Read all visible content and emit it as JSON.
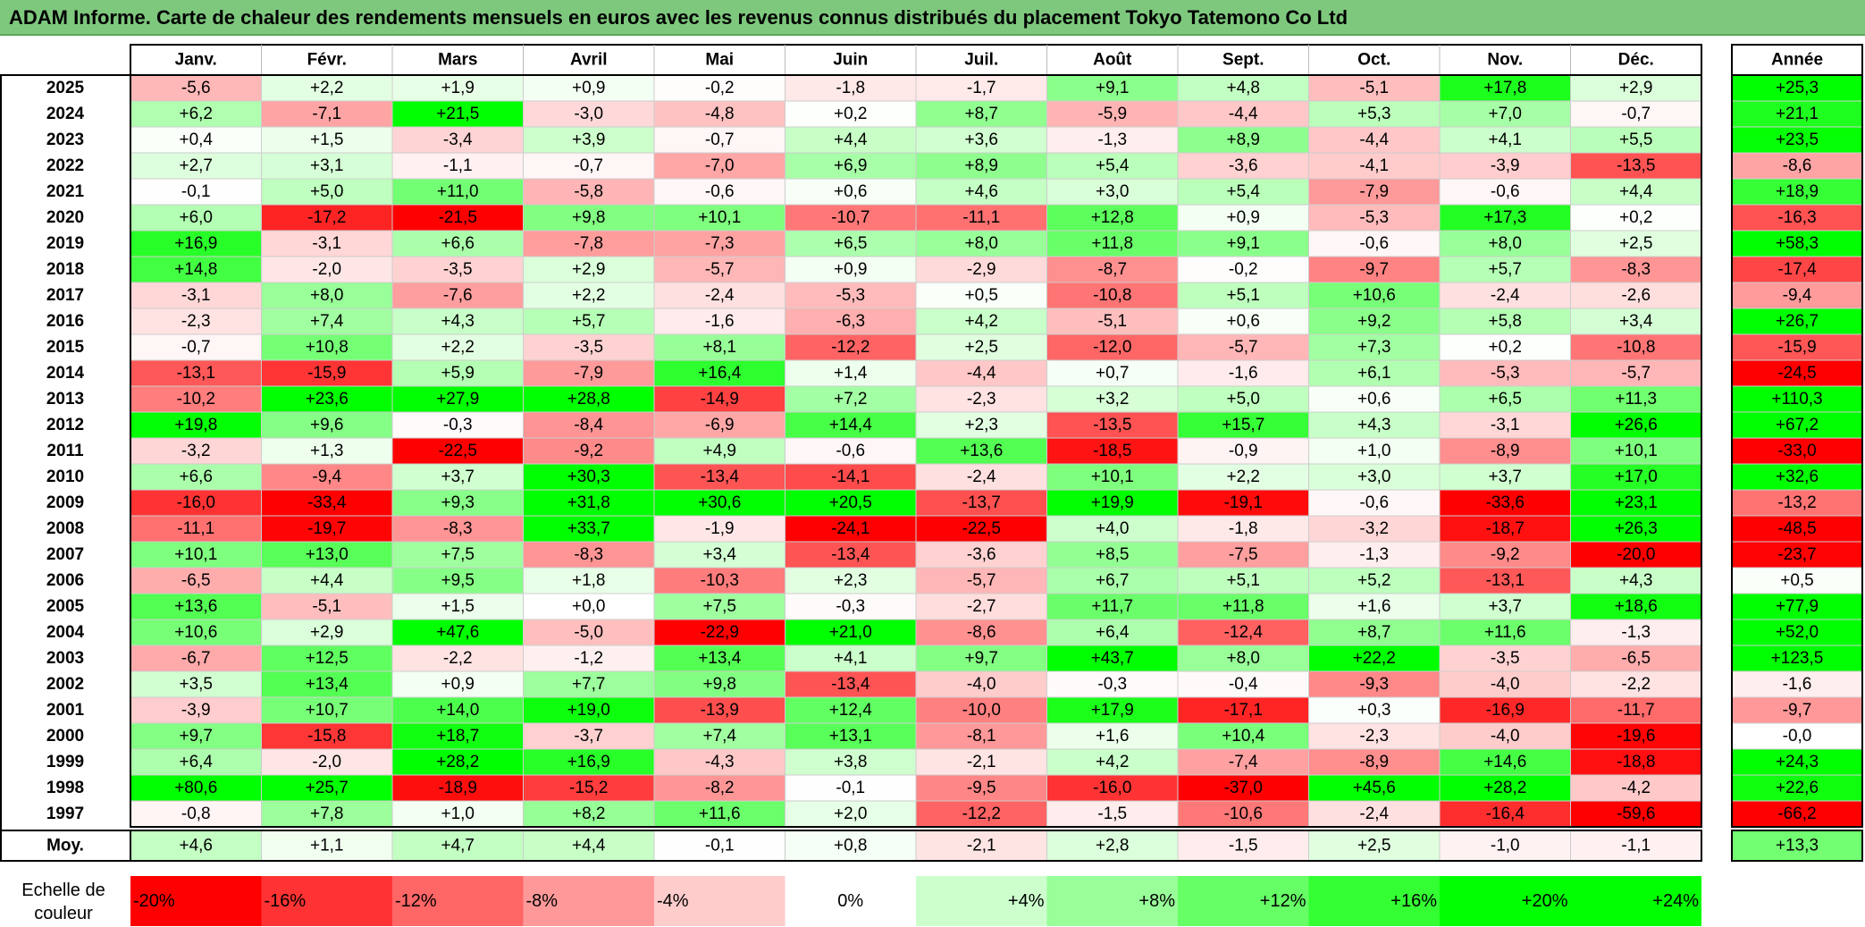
{
  "title": "ADAM Informe. Carte de chaleur des rendements mensuels en euros avec les revenus connus distribués du placement Tokyo Tatemono Co Ltd",
  "chart_data": {
    "type": "heatmap",
    "months": [
      "Janv.",
      "Févr.",
      "Mars",
      "Avril",
      "Mai",
      "Juin",
      "Juil.",
      "Août",
      "Sept.",
      "Oct.",
      "Nov.",
      "Déc."
    ],
    "annual_header": "Année",
    "rows": [
      {
        "year": "2025",
        "values": [
          "-5,6",
          "+2,2",
          "+1,9",
          "+0,9",
          "-0,2",
          "-1,8",
          "-1,7",
          "+9,1",
          "+4,8",
          "-5,1",
          "+17,8",
          "+2,9"
        ],
        "annual": "+25,3"
      },
      {
        "year": "2024",
        "values": [
          "+6,2",
          "-7,1",
          "+21,5",
          "-3,0",
          "-4,8",
          "+0,2",
          "+8,7",
          "-5,9",
          "-4,4",
          "+5,3",
          "+7,0",
          "-0,7"
        ],
        "annual": "+21,1"
      },
      {
        "year": "2023",
        "values": [
          "+0,4",
          "+1,5",
          "-3,4",
          "+3,9",
          "-0,7",
          "+4,4",
          "+3,6",
          "-1,3",
          "+8,9",
          "-4,4",
          "+4,1",
          "+5,5"
        ],
        "annual": "+23,5"
      },
      {
        "year": "2022",
        "values": [
          "+2,7",
          "+3,1",
          "-1,1",
          "-0,7",
          "-7,0",
          "+6,9",
          "+8,9",
          "+5,4",
          "-3,6",
          "-4,1",
          "-3,9",
          "-13,5"
        ],
        "annual": "-8,6"
      },
      {
        "year": "2021",
        "values": [
          "-0,1",
          "+5,0",
          "+11,0",
          "-5,8",
          "-0,6",
          "+0,6",
          "+4,6",
          "+3,0",
          "+5,4",
          "-7,9",
          "-0,6",
          "+4,4"
        ],
        "annual": "+18,9"
      },
      {
        "year": "2020",
        "values": [
          "+6,0",
          "-17,2",
          "-21,5",
          "+9,8",
          "+10,1",
          "-10,7",
          "-11,1",
          "+12,8",
          "+0,9",
          "-5,3",
          "+17,3",
          "+0,2"
        ],
        "annual": "-16,3"
      },
      {
        "year": "2019",
        "values": [
          "+16,9",
          "-3,1",
          "+6,6",
          "-7,8",
          "-7,3",
          "+6,5",
          "+8,0",
          "+11,8",
          "+9,1",
          "-0,6",
          "+8,0",
          "+2,5"
        ],
        "annual": "+58,3"
      },
      {
        "year": "2018",
        "values": [
          "+14,8",
          "-2,0",
          "-3,5",
          "+2,9",
          "-5,7",
          "+0,9",
          "-2,9",
          "-8,7",
          "-0,2",
          "-9,7",
          "+5,7",
          "-8,3"
        ],
        "annual": "-17,4"
      },
      {
        "year": "2017",
        "values": [
          "-3,1",
          "+8,0",
          "-7,6",
          "+2,2",
          "-2,4",
          "-5,3",
          "+0,5",
          "-10,8",
          "+5,1",
          "+10,6",
          "-2,4",
          "-2,6"
        ],
        "annual": "-9,4"
      },
      {
        "year": "2016",
        "values": [
          "-2,3",
          "+7,4",
          "+4,3",
          "+5,7",
          "-1,6",
          "-6,3",
          "+4,2",
          "-5,1",
          "+0,6",
          "+9,2",
          "+5,8",
          "+3,4"
        ],
        "annual": "+26,7"
      },
      {
        "year": "2015",
        "values": [
          "-0,7",
          "+10,8",
          "+2,2",
          "-3,5",
          "+8,1",
          "-12,2",
          "+2,5",
          "-12,0",
          "-5,7",
          "+7,3",
          "+0,2",
          "-10,8"
        ],
        "annual": "-15,9"
      },
      {
        "year": "2014",
        "values": [
          "-13,1",
          "-15,9",
          "+5,9",
          "-7,9",
          "+16,4",
          "+1,4",
          "-4,4",
          "+0,7",
          "-1,6",
          "+6,1",
          "-5,3",
          "-5,7"
        ],
        "annual": "-24,5"
      },
      {
        "year": "2013",
        "values": [
          "-10,2",
          "+23,6",
          "+27,9",
          "+28,8",
          "-14,9",
          "+7,2",
          "-2,3",
          "+3,2",
          "+5,0",
          "+0,6",
          "+6,5",
          "+11,3"
        ],
        "annual": "+110,3"
      },
      {
        "year": "2012",
        "values": [
          "+19,8",
          "+9,6",
          "-0,3",
          "-8,4",
          "-6,9",
          "+14,4",
          "+2,3",
          "-13,5",
          "+15,7",
          "+4,3",
          "-3,1",
          "+26,6"
        ],
        "annual": "+67,2"
      },
      {
        "year": "2011",
        "values": [
          "-3,2",
          "+1,3",
          "-22,5",
          "-9,2",
          "+4,9",
          "-0,6",
          "+13,6",
          "-18,5",
          "-0,9",
          "+1,0",
          "-8,9",
          "+10,1"
        ],
        "annual": "-33,0"
      },
      {
        "year": "2010",
        "values": [
          "+6,6",
          "-9,4",
          "+3,7",
          "+30,3",
          "-13,4",
          "-14,1",
          "-2,4",
          "+10,1",
          "+2,2",
          "+3,0",
          "+3,7",
          "+17,0"
        ],
        "annual": "+32,6"
      },
      {
        "year": "2009",
        "values": [
          "-16,0",
          "-33,4",
          "+9,3",
          "+31,8",
          "+30,6",
          "+20,5",
          "-13,7",
          "+19,9",
          "-19,1",
          "-0,6",
          "-33,6",
          "+23,1"
        ],
        "annual": "-13,2"
      },
      {
        "year": "2008",
        "values": [
          "-11,1",
          "-19,7",
          "-8,3",
          "+33,7",
          "-1,9",
          "-24,1",
          "-22,5",
          "+4,0",
          "-1,8",
          "-3,2",
          "-18,7",
          "+26,3"
        ],
        "annual": "-48,5"
      },
      {
        "year": "2007",
        "values": [
          "+10,1",
          "+13,0",
          "+7,5",
          "-8,3",
          "+3,4",
          "-13,4",
          "-3,6",
          "+8,5",
          "-7,5",
          "-1,3",
          "-9,2",
          "-20,0"
        ],
        "annual": "-23,7"
      },
      {
        "year": "2006",
        "values": [
          "-6,5",
          "+4,4",
          "+9,5",
          "+1,8",
          "-10,3",
          "+2,3",
          "-5,7",
          "+6,7",
          "+5,1",
          "+5,2",
          "-13,1",
          "+4,3"
        ],
        "annual": "+0,5"
      },
      {
        "year": "2005",
        "values": [
          "+13,6",
          "-5,1",
          "+1,5",
          "+0,0",
          "+7,5",
          "-0,3",
          "-2,7",
          "+11,7",
          "+11,8",
          "+1,6",
          "+3,7",
          "+18,6"
        ],
        "annual": "+77,9"
      },
      {
        "year": "2004",
        "values": [
          "+10,6",
          "+2,9",
          "+47,6",
          "-5,0",
          "-22,9",
          "+21,0",
          "-8,6",
          "+6,4",
          "-12,4",
          "+8,7",
          "+11,6",
          "-1,3"
        ],
        "annual": "+52,0"
      },
      {
        "year": "2003",
        "values": [
          "-6,7",
          "+12,5",
          "-2,2",
          "-1,2",
          "+13,4",
          "+4,1",
          "+9,7",
          "+43,7",
          "+8,0",
          "+22,2",
          "-3,5",
          "-6,5"
        ],
        "annual": "+123,5"
      },
      {
        "year": "2002",
        "values": [
          "+3,5",
          "+13,4",
          "+0,9",
          "+7,7",
          "+9,8",
          "-13,4",
          "-4,0",
          "-0,3",
          "-0,4",
          "-9,3",
          "-4,0",
          "-2,2"
        ],
        "annual": "-1,6"
      },
      {
        "year": "2001",
        "values": [
          "-3,9",
          "+10,7",
          "+14,0",
          "+19,0",
          "-13,9",
          "+12,4",
          "-10,0",
          "+17,9",
          "-17,1",
          "+0,3",
          "-16,9",
          "-11,7"
        ],
        "annual": "-9,7"
      },
      {
        "year": "2000",
        "values": [
          "+9,7",
          "-15,8",
          "+18,7",
          "-3,7",
          "+7,4",
          "+13,1",
          "-8,1",
          "+1,6",
          "+10,4",
          "-2,3",
          "-4,0",
          "-19,6"
        ],
        "annual": "-0,0"
      },
      {
        "year": "1999",
        "values": [
          "+6,4",
          "-2,0",
          "+28,2",
          "+16,9",
          "-4,3",
          "+3,8",
          "-2,1",
          "+4,2",
          "-7,4",
          "-8,9",
          "+14,6",
          "-18,8"
        ],
        "annual": "+24,3"
      },
      {
        "year": "1998",
        "values": [
          "+80,6",
          "+25,7",
          "-18,9",
          "-15,2",
          "-8,2",
          "-0,1",
          "-9,5",
          "-16,0",
          "-37,0",
          "+45,6",
          "+28,2",
          "-4,2"
        ],
        "annual": "+22,6"
      },
      {
        "year": "1997",
        "values": [
          "-0,8",
          "+7,8",
          "+1,0",
          "+8,2",
          "+11,6",
          "+2,0",
          "-12,2",
          "-1,5",
          "-10,6",
          "-2,4",
          "-16,4",
          "-59,6"
        ],
        "annual": "-66,2"
      }
    ],
    "average": {
      "label": "Moy.",
      "values": [
        "+4,6",
        "+1,1",
        "+4,7",
        "+4,4",
        "-0,1",
        "+0,8",
        "-2,1",
        "+2,8",
        "-1,5",
        "+2,5",
        "-1,0",
        "-1,1"
      ],
      "annual": "+13,3"
    },
    "color_scale": {
      "label_line1": "Echelle de",
      "label_line2": "couleur",
      "steps": [
        {
          "label": "-20%",
          "value": -20
        },
        {
          "label": "-16%",
          "value": -16
        },
        {
          "label": "-12%",
          "value": -12
        },
        {
          "label": "-8%",
          "value": -8
        },
        {
          "label": "-4%",
          "value": -4
        },
        {
          "label": "0%",
          "value": 0
        },
        {
          "label": "+4%",
          "value": 4
        },
        {
          "label": "+8%",
          "value": 8
        },
        {
          "label": "+12%",
          "value": 12
        },
        {
          "label": "+16%",
          "value": 16
        },
        {
          "label": "+20%",
          "value": 20
        },
        {
          "label": "+24%",
          "value": 24
        }
      ],
      "negative_max_color": "#ff0000",
      "positive_max_color": "#00ff00",
      "neutral_color": "#ffffff",
      "monthly_saturation": 20,
      "annual_saturation": 24
    }
  }
}
